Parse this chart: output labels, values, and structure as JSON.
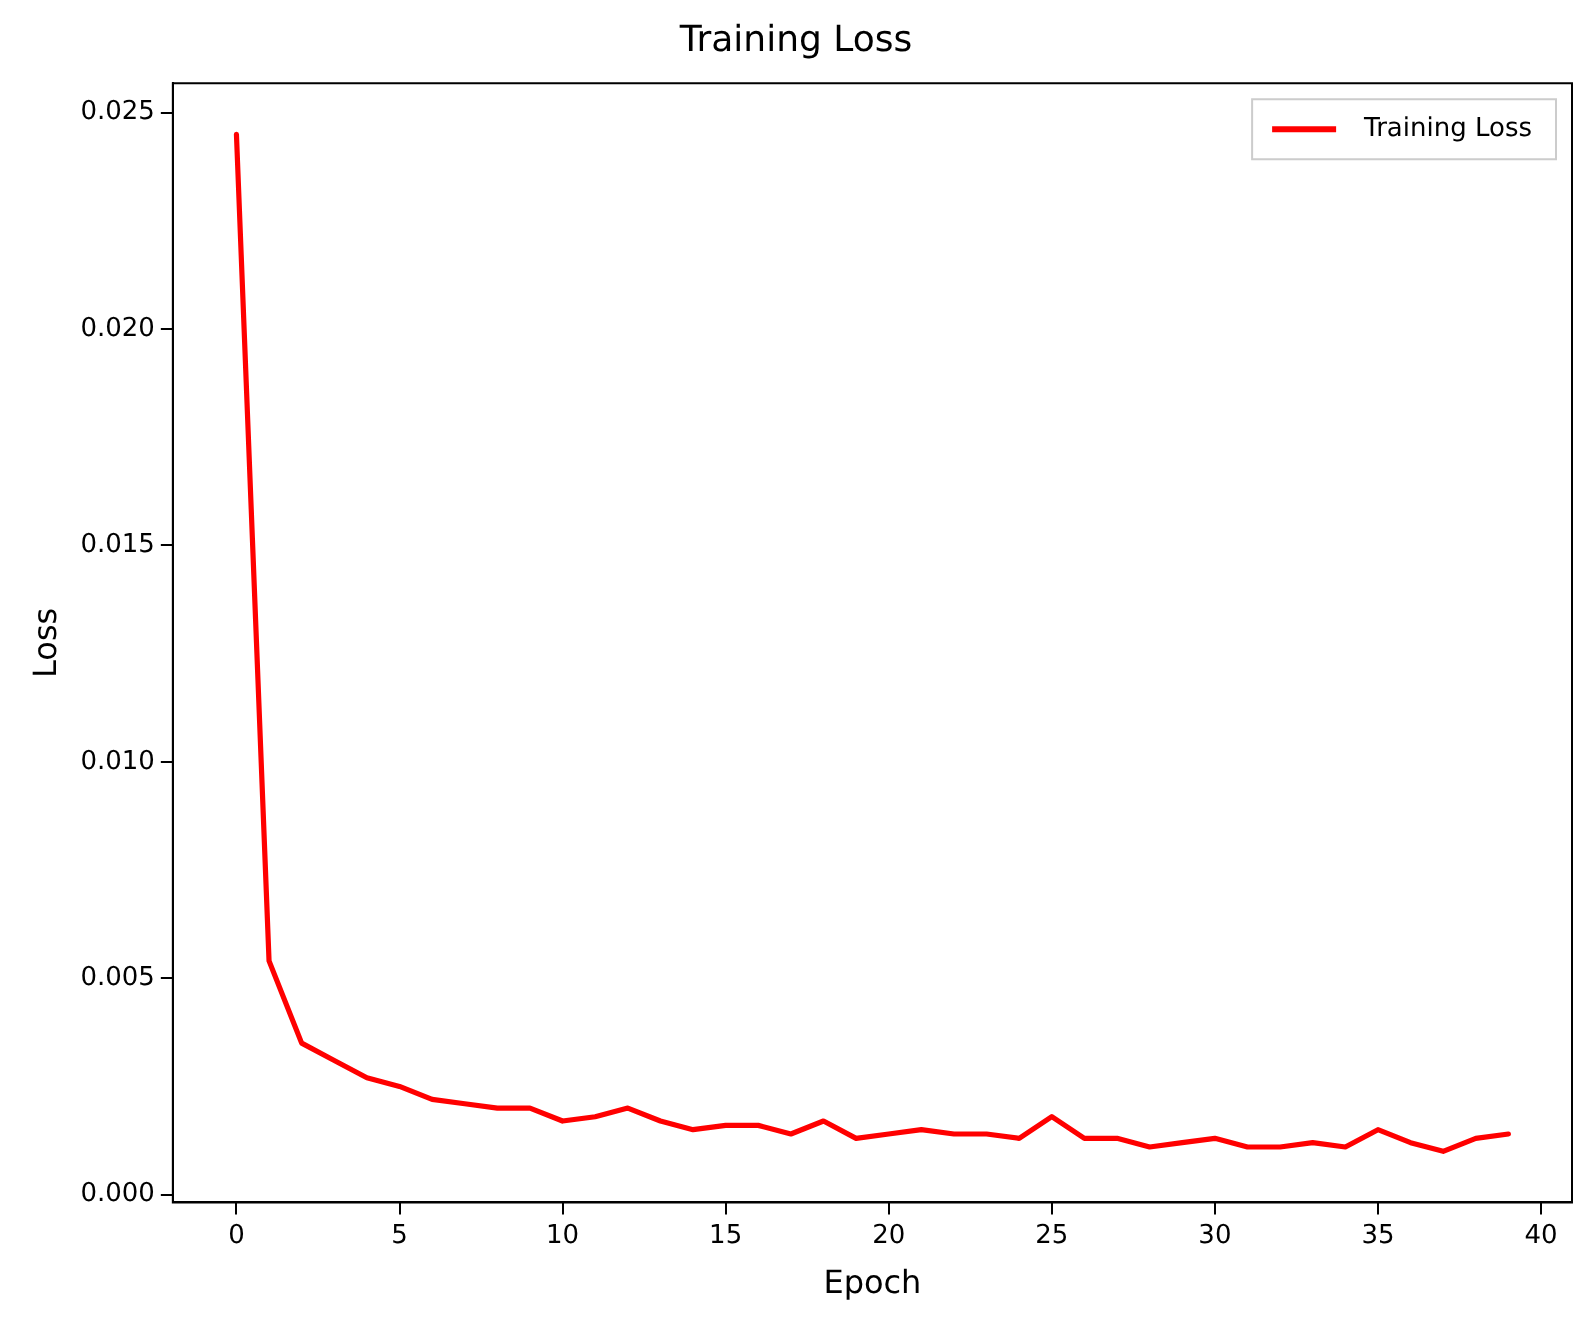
{
  "chart_data": {
    "type": "line",
    "title": "Training Loss",
    "xlabel": "Epoch",
    "ylabel": "Loss",
    "x": [
      0,
      1,
      2,
      3,
      4,
      5,
      6,
      7,
      8,
      9,
      10,
      11,
      12,
      13,
      14,
      15,
      16,
      17,
      18,
      19,
      20,
      21,
      22,
      23,
      24,
      25,
      26,
      27,
      28,
      29,
      30,
      31,
      32,
      33,
      34,
      35,
      36,
      37,
      38,
      39
    ],
    "series": [
      {
        "name": "Training Loss",
        "color": "#ff0000",
        "values": [
          0.0245,
          0.0054,
          0.0035,
          0.0031,
          0.0027,
          0.0025,
          0.0022,
          0.0021,
          0.002,
          0.002,
          0.0017,
          0.0018,
          0.002,
          0.0017,
          0.0015,
          0.0016,
          0.0016,
          0.0014,
          0.0017,
          0.0013,
          0.0014,
          0.0015,
          0.0014,
          0.0014,
          0.0013,
          0.0018,
          0.0013,
          0.0013,
          0.0011,
          0.0012,
          0.0013,
          0.0011,
          0.0011,
          0.0012,
          0.0011,
          0.0015,
          0.0012,
          0.001,
          0.0013,
          0.0014
        ]
      }
    ],
    "xlim": [
      -1.95,
      40.95
    ],
    "xticks": [
      0,
      5,
      10,
      15,
      20,
      25,
      30,
      35,
      40
    ],
    "ylim": [
      -0.00018,
      0.02568
    ],
    "yticks": [
      {
        "value": 0,
        "label": "0.000"
      },
      {
        "value": 0.005,
        "label": "0.005"
      },
      {
        "value": 0.01,
        "label": "0.010"
      },
      {
        "value": 0.015,
        "label": "0.015"
      },
      {
        "value": 0.02,
        "label": "0.020"
      },
      {
        "value": 0.025,
        "label": "0.025"
      }
    ],
    "grid": false,
    "legend": "top right",
    "marker": "none",
    "line_style": "solid"
  }
}
